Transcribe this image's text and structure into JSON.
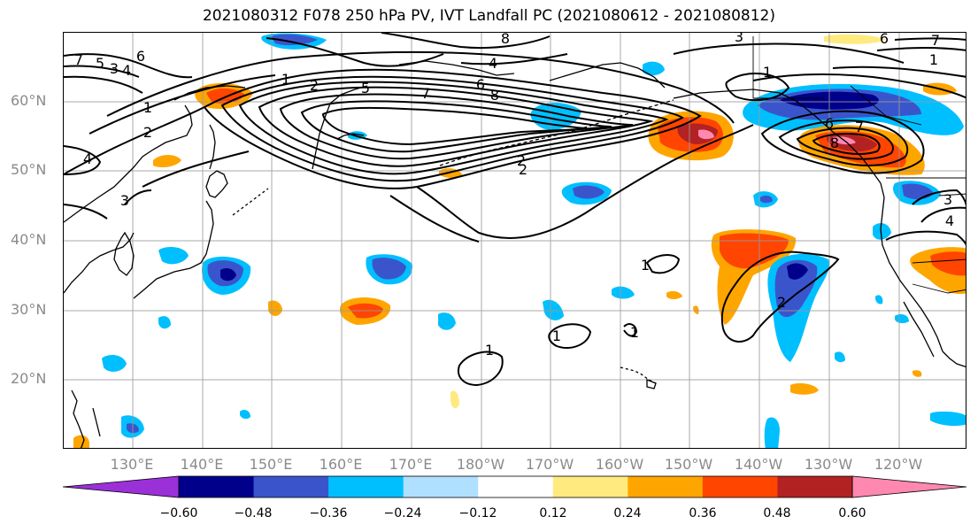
{
  "title": "2021080312 F078 250 hPa PV, IVT Landfall PC (2021080612 - 2021080812)",
  "lat_labels": [
    "60°N",
    "50°N",
    "40°N",
    "30°N",
    "20°N"
  ],
  "lon_labels": [
    "130°E",
    "140°E",
    "150°E",
    "160°E",
    "170°E",
    "180°W",
    "170°W",
    "160°W",
    "150°W",
    "140°W",
    "130°W",
    "120°W"
  ],
  "colorbar": {
    "ticks": [
      "−0.60",
      "−0.48",
      "−0.36",
      "−0.24",
      "−0.12",
      "0.12",
      "0.24",
      "0.36",
      "0.48",
      "0.60"
    ],
    "colors": [
      "#9b30d9",
      "#00008b",
      "#3a55cc",
      "#00bfff",
      "#b0e0ff",
      "#ffffff",
      "#ffea80",
      "#ffa500",
      "#ff4500",
      "#b22222",
      "#ff88b0"
    ]
  },
  "contour_labels": [
    "1",
    "2",
    "2",
    "1",
    "2",
    "3",
    "4",
    "5",
    "6",
    "7",
    "8",
    "1",
    "1",
    "1",
    "1",
    "1",
    "2",
    "2",
    "3",
    "4",
    "6",
    "3",
    "4",
    "7",
    "4",
    "3",
    "5",
    "6",
    "7",
    "8",
    "6",
    "7",
    "8",
    "1"
  ]
}
